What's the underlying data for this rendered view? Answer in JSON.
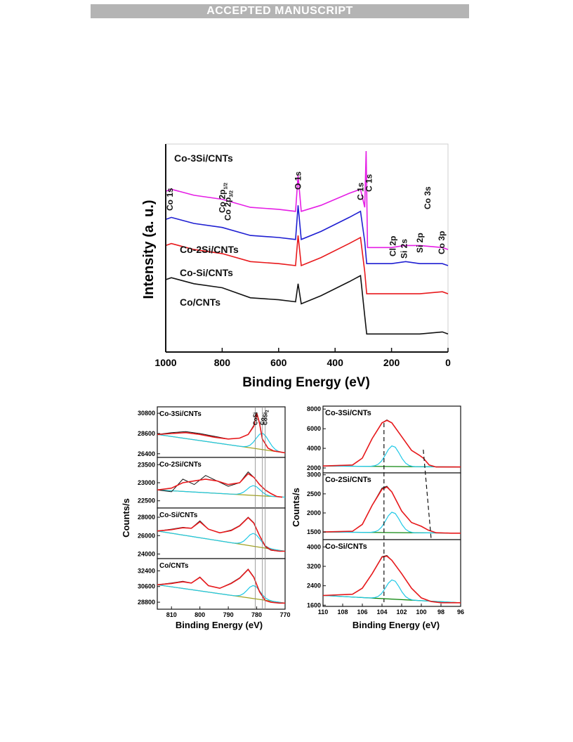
{
  "banner": "ACCEPTED MANUSCRIPT",
  "colors": {
    "black": "#111111",
    "red": "#e8191c",
    "blue": "#1f1fd2",
    "magenta": "#e51ee5",
    "cyan": "#1ec8e6",
    "yellow": "#d8c81e",
    "olive": "#a0a01e",
    "purple": "#a02cd2"
  },
  "chart_data": [
    {
      "type": "line",
      "ylabel": "Intensity (a. u.)",
      "xlabel": "Binding Energy (eV)",
      "xlim": [
        1000,
        0
      ],
      "x_ticks": [
        "1000",
        "800",
        "600",
        "400",
        "200",
        "0"
      ],
      "series": [
        {
          "name": "Co/CNTs",
          "color": "black",
          "x": [
            1000,
            980,
            900,
            800,
            700,
            600,
            540,
            531,
            520,
            450,
            350,
            310,
            295,
            288,
            285,
            250,
            200,
            100,
            20,
            0
          ],
          "y": [
            0.36,
            0.37,
            0.34,
            0.32,
            0.27,
            0.26,
            0.25,
            0.34,
            0.24,
            0.28,
            0.35,
            0.38,
            0.18,
            0.09,
            0.09,
            0.09,
            0.09,
            0.09,
            0.1,
            0.09
          ]
        },
        {
          "name": "Co-Si/CNTs",
          "color": "red",
          "x": [
            1000,
            980,
            900,
            800,
            700,
            600,
            540,
            531,
            520,
            450,
            350,
            310,
            295,
            288,
            285,
            250,
            200,
            100,
            20,
            0
          ],
          "y": [
            0.53,
            0.54,
            0.51,
            0.49,
            0.45,
            0.44,
            0.43,
            0.58,
            0.43,
            0.47,
            0.54,
            0.57,
            0.4,
            0.29,
            0.29,
            0.29,
            0.29,
            0.29,
            0.3,
            0.29
          ]
        },
        {
          "name": "Co-2Si/CNTs",
          "color": "blue",
          "x": [
            1000,
            980,
            900,
            800,
            700,
            600,
            540,
            531,
            520,
            450,
            350,
            310,
            295,
            288,
            285,
            250,
            200,
            150,
            100,
            20,
            0
          ],
          "y": [
            0.66,
            0.67,
            0.64,
            0.62,
            0.58,
            0.57,
            0.56,
            0.73,
            0.56,
            0.6,
            0.67,
            0.7,
            0.55,
            0.44,
            0.44,
            0.44,
            0.44,
            0.45,
            0.44,
            0.44,
            0.43
          ]
        },
        {
          "name": "Co-3Si/CNTs",
          "color": "magenta",
          "x": [
            1000,
            980,
            900,
            800,
            700,
            600,
            540,
            531,
            520,
            450,
            350,
            310,
            295,
            290,
            285,
            270,
            200,
            155,
            100,
            20,
            0
          ],
          "y": [
            0.8,
            0.81,
            0.78,
            0.76,
            0.72,
            0.71,
            0.7,
            0.88,
            0.7,
            0.73,
            0.79,
            0.81,
            0.72,
            1.0,
            0.52,
            0.52,
            0.52,
            0.53,
            0.53,
            0.52,
            0.51
          ]
        }
      ],
      "annotations": [
        {
          "text": "Co 1s",
          "x": 985
        },
        {
          "text": "Co 2p",
          "sub": "1/2",
          "x": 800
        },
        {
          "text": "Co 2p",
          "sub": "3/2",
          "x": 780
        },
        {
          "text": "O 1s",
          "x": 531
        },
        {
          "text": "C 1s",
          "x": 310
        },
        {
          "text": "C 1s",
          "x": 280
        },
        {
          "text": "Cl 2p",
          "x": 195
        },
        {
          "text": "Si 2s",
          "x": 155
        },
        {
          "text": "Si 2p",
          "x": 100
        },
        {
          "text": "Co 3s",
          "x": 72
        },
        {
          "text": "Co 3p",
          "x": 22
        }
      ]
    },
    {
      "type": "line",
      "ylabel": "Counts/s",
      "xlabel": "Binding Energy (eV)",
      "xlim": [
        815,
        770
      ],
      "x_ticks": [
        "810",
        "800",
        "790",
        "780",
        "770"
      ],
      "reference_lines": [
        {
          "label": "Co",
          "x": 778
        },
        {
          "label": "CoSi",
          "x": 780.5
        },
        {
          "label": "CoSi",
          "sub": "2",
          "x": 777
        }
      ],
      "panels": [
        {
          "name": "Co-3Si/CNTs",
          "ylim": [
            26000,
            31500
          ],
          "y_ticks": [
            "30800",
            "28600",
            "26400"
          ],
          "data": {
            "x": [
              815,
              810,
              805,
              800,
              795,
              790,
              786,
              783,
              781,
              780,
              779,
              778,
              776,
              774,
              772,
              770
            ],
            "y": [
              28500,
              28700,
              28800,
              28600,
              28300,
              28000,
              28100,
              28500,
              29500,
              30900,
              29800,
              28000,
              27000,
              26700,
              26600,
              26500
            ]
          },
          "envelope": {
            "x": [
              815,
              810,
              805,
              800,
              795,
              790,
              786,
              783,
              781,
              780,
              779,
              778,
              776,
              774,
              772,
              770
            ],
            "y": [
              28500,
              28600,
              28700,
              28500,
              28200,
              28000,
              28100,
              28500,
              29400,
              30800,
              29700,
              28000,
              27000,
              26700,
              26600,
              26500
            ]
          }
        },
        {
          "name": "Co-2Si/CNTs",
          "ylim": [
            22300,
            23700
          ],
          "y_ticks": [
            "23500",
            "23000",
            "22500"
          ],
          "data": {
            "x": [
              815,
              810,
              806,
              802,
              798,
              794,
              790,
              786,
              783,
              781,
              779,
              777,
              775,
              773,
              771
            ],
            "y": [
              22800,
              22750,
              23100,
              22950,
              23200,
              23050,
              22900,
              23000,
              23300,
              23150,
              22950,
              22800,
              22700,
              22620,
              22600
            ]
          },
          "envelope": {
            "x": [
              815,
              810,
              806,
              802,
              798,
              794,
              790,
              786,
              783,
              781,
              779,
              777,
              775,
              773,
              771
            ],
            "y": [
              22800,
              22850,
              23000,
              23050,
              23100,
              23050,
              22950,
              23000,
              23250,
              23150,
              22950,
              22800,
              22700,
              22620,
              22600
            ]
          }
        },
        {
          "name": "Co-Si/CNTs",
          "ylim": [
            23500,
            29000
          ],
          "y_ticks": [
            "28000",
            "26000",
            "24000"
          ],
          "data": {
            "x": [
              815,
              810,
              806,
              803,
              800,
              797,
              793,
              789,
              786,
              783,
              781,
              779,
              777,
              775,
              772,
              770
            ],
            "y": [
              26500,
              26700,
              26900,
              26800,
              27600,
              26700,
              26300,
              26600,
              27100,
              28000,
              27400,
              26000,
              24800,
              24400,
              24300,
              24300
            ]
          },
          "envelope": {
            "x": [
              815,
              810,
              806,
              803,
              800,
              797,
              793,
              789,
              786,
              783,
              781,
              779,
              777,
              775,
              772,
              770
            ],
            "y": [
              26500,
              26650,
              26850,
              26800,
              27500,
              26700,
              26300,
              26550,
              27050,
              27950,
              27350,
              26000,
              24850,
              24450,
              24300,
              24300
            ]
          }
        },
        {
          "name": "Co/CNTs",
          "ylim": [
            28000,
            33800
          ],
          "y_ticks": [
            "32400",
            "30600",
            "28800"
          ],
          "data": {
            "x": [
              815,
              810,
              806,
              803,
              800,
              797,
              793,
              789,
              786,
              783,
              781,
              779,
              777,
              775,
              772,
              770
            ],
            "y": [
              30800,
              31000,
              31200,
              31000,
              31700,
              30700,
              30400,
              31000,
              31600,
              32600,
              31700,
              30000,
              29000,
              28800,
              28700,
              28700
            ]
          },
          "envelope": {
            "x": [
              815,
              810,
              806,
              803,
              800,
              797,
              793,
              789,
              786,
              783,
              781,
              779,
              777,
              775,
              772,
              770
            ],
            "y": [
              30800,
              30950,
              31150,
              31000,
              31650,
              30700,
              30400,
              30950,
              31550,
              32550,
              31650,
              30000,
              29000,
              28800,
              28700,
              28700
            ]
          }
        }
      ]
    },
    {
      "type": "line",
      "ylabel": "Counts/s",
      "xlabel": "Binding Energy (eV)",
      "xlim": [
        110,
        96
      ],
      "x_ticks": [
        "110",
        "108",
        "106",
        "104",
        "102",
        "100",
        "98",
        "96"
      ],
      "panels": [
        {
          "name": "Co-3Si/CNTs",
          "ylim": [
            1500,
            8300
          ],
          "y_ticks": [
            "8000",
            "6000",
            "4000",
            "2000"
          ],
          "data": {
            "x": [
              110,
              107,
              106,
              105,
              104,
              103.5,
              103,
              102,
              101,
              100.2,
              99.8,
              99.2,
              98.5,
              97,
              96
            ],
            "y": [
              2200,
              2300,
              3000,
              5000,
              6600,
              6900,
              6600,
              5200,
              3800,
              3300,
              3000,
              2300,
              2100,
              2100,
              2100
            ]
          },
          "envelope": {
            "x": [
              110,
              107,
              106,
              105,
              104,
              103.5,
              103,
              102,
              101,
              100.2,
              99.8,
              99.2,
              98.5,
              97,
              96
            ],
            "y": [
              2200,
              2300,
              3000,
              5000,
              6600,
              6850,
              6600,
              5200,
              3800,
              3300,
              3000,
              2300,
              2100,
              2100,
              2100
            ]
          }
        },
        {
          "name": "Co-2Si/CNTs",
          "ylim": [
            1300,
            3050
          ],
          "y_ticks": [
            "3000",
            "2500",
            "2000",
            "1500"
          ],
          "data": {
            "x": [
              110,
              107,
              106,
              105,
              104,
              103.5,
              103,
              102,
              101,
              100,
              99.3,
              98.5,
              97,
              96
            ],
            "y": [
              1500,
              1520,
              1700,
              2200,
              2650,
              2700,
              2550,
              2050,
              1750,
              1650,
              1550,
              1480,
              1470,
              1470
            ]
          },
          "envelope": {
            "x": [
              110,
              107,
              106,
              105,
              104,
              103.5,
              103,
              102,
              101,
              100,
              99.3,
              98.5,
              97,
              96
            ],
            "y": [
              1500,
              1520,
              1700,
              2200,
              2620,
              2680,
              2550,
              2050,
              1750,
              1650,
              1550,
              1480,
              1470,
              1470
            ]
          }
        },
        {
          "name": "Co-Si/CNTs",
          "ylim": [
            1550,
            4300
          ],
          "y_ticks": [
            "4000",
            "3200",
            "2400",
            "1600"
          ],
          "data": {
            "x": [
              110,
              107,
              106,
              105,
              104,
              103.5,
              103,
              102,
              101,
              100,
              99,
              98,
              96
            ],
            "y": [
              2000,
              2050,
              2300,
              2900,
              3600,
              3650,
              3450,
              2900,
              2300,
              1900,
              1750,
              1700,
              1700
            ]
          },
          "envelope": {
            "x": [
              110,
              107,
              106,
              105,
              104,
              103.5,
              103,
              102,
              101,
              100,
              99,
              98,
              96
            ],
            "y": [
              2000,
              2050,
              2300,
              2900,
              3580,
              3620,
              3450,
              2900,
              2300,
              1900,
              1750,
              1700,
              1700
            ]
          }
        }
      ]
    }
  ]
}
